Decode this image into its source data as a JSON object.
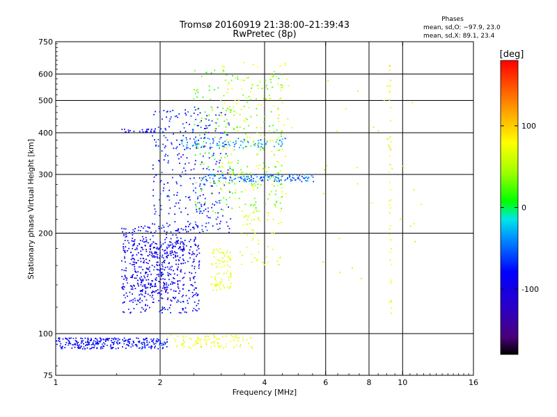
{
  "header": {
    "title_line1": "Tromsø 20160919 21:38:00–21:39:43",
    "title_line2": "RwPretec (8p)",
    "stats_title": "Phases",
    "stats_o": "mean, sd,O: −97.9, 23.0",
    "stats_x": "mean, sd,X:  89.1, 23.4"
  },
  "colorbar": {
    "label": "[deg]",
    "ticks": [
      {
        "value": 100,
        "label": "100"
      },
      {
        "value": 0,
        "label": "0"
      },
      {
        "value": -100,
        "label": "-100"
      }
    ],
    "range": [
      -180,
      180
    ]
  },
  "chart_data": {
    "type": "scatter",
    "title": "",
    "xlabel": "Frequency [MHz]",
    "ylabel": "Stationary phase Virtual Height [km]",
    "xscale": "log2",
    "yscale": "log",
    "xlim": [
      1,
      16
    ],
    "ylim": [
      75,
      750
    ],
    "xticks": [
      1,
      2,
      4,
      6,
      8,
      10,
      16
    ],
    "yticks": [
      75,
      100,
      200,
      300,
      400,
      500,
      600,
      750
    ],
    "grid_x": [
      2,
      4,
      6,
      8,
      10
    ],
    "grid_y": [
      100,
      200,
      300,
      400,
      500,
      600
    ],
    "colorscale": "rainbow phase (black=-180, blue=-100, cyan, green=0, yellow=100, red=180)",
    "clusters": [
      {
        "name": "E-layer trace",
        "x_range": [
          1.0,
          2.1
        ],
        "y_range": [
          90,
          97
        ],
        "phase": -100,
        "count": 280
      },
      {
        "name": "E-layer trace yellow",
        "x_range": [
          2.1,
          3.7
        ],
        "y_range": [
          90,
          99
        ],
        "phase": 95,
        "count": 90
      },
      {
        "name": "Es cloud low",
        "x_range": [
          1.55,
          2.6
        ],
        "y_range": [
          115,
          210
        ],
        "phase": -105,
        "count": 480
      },
      {
        "name": "Es cloud core",
        "x_range": [
          1.65,
          2.35
        ],
        "y_range": [
          130,
          190
        ],
        "phase": -110,
        "count": 220
      },
      {
        "name": "F-region blue",
        "x_range": [
          1.9,
          3.2
        ],
        "y_range": [
          200,
          480
        ],
        "phase": -95,
        "count": 320
      },
      {
        "name": "F-region mixed",
        "x_range": [
          2.5,
          4.5
        ],
        "y_range": [
          230,
          620
        ],
        "phase": 20,
        "count": 260
      },
      {
        "name": "F-region yellow",
        "x_range": [
          3.0,
          4.8
        ],
        "y_range": [
          250,
          650
        ],
        "phase": 90,
        "count": 130
      },
      {
        "name": "Horizontal band 290 km",
        "x_range": [
          2.6,
          5.6
        ],
        "y_range": [
          285,
          300
        ],
        "phase": -70,
        "count": 140
      },
      {
        "name": "Horizontal band 370 km",
        "x_range": [
          2.3,
          4.6
        ],
        "y_range": [
          360,
          385
        ],
        "phase": -60,
        "count": 90
      },
      {
        "name": "Blob 2.5-3.4 / 150-220 km",
        "x_range": [
          2.8,
          3.2
        ],
        "y_range": [
          135,
          180
        ],
        "phase": 85,
        "count": 80
      },
      {
        "name": "Mid cluster 3.5-4.5 / 160-230 km",
        "x_range": [
          3.4,
          4.5
        ],
        "y_range": [
          155,
          240
        ],
        "phase": 80,
        "count": 60
      },
      {
        "name": "Band near 1.6-2 MHz / 405 km",
        "x_range": [
          1.55,
          1.95
        ],
        "y_range": [
          400,
          410
        ],
        "phase": -105,
        "count": 25
      },
      {
        "name": "Vertical streak 9.2 MHz",
        "x_range": [
          9.15,
          9.3
        ],
        "y_range": [
          110,
          650
        ],
        "phase": 100,
        "count": 45
      },
      {
        "name": "Sparse high freq",
        "x_range": [
          5.8,
          11.5
        ],
        "y_range": [
          140,
          600
        ],
        "phase": 60,
        "count": 30
      }
    ]
  }
}
